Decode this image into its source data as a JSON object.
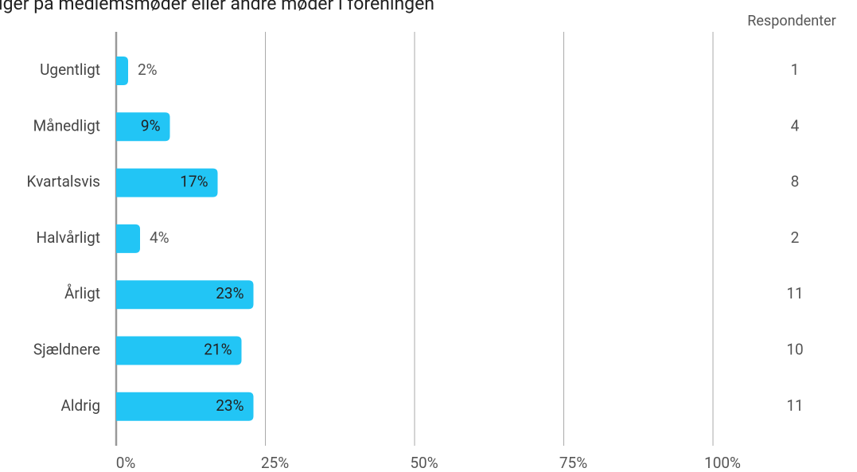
{
  "chart_data": {
    "type": "bar",
    "orientation": "horizontal",
    "title": "lger på medlemsmøder eller andre møder i foreningen",
    "categories": [
      "Ugentligt",
      "Månedligt",
      "Kvartalsvis",
      "Halvårligt",
      "Årligt",
      "Sjældnere",
      "Aldrig"
    ],
    "values": [
      2,
      9,
      17,
      4,
      23,
      21,
      23
    ],
    "value_labels": [
      "2%",
      "9%",
      "17%",
      "4%",
      "23%",
      "21%",
      "23%"
    ],
    "color": "#22c5f5",
    "xlim": [
      0,
      100
    ],
    "xticks": [
      {
        "value": 0,
        "label": "0%"
      },
      {
        "value": 25,
        "label": "25%"
      },
      {
        "value": 50,
        "label": "50%"
      },
      {
        "value": 75,
        "label": "75%"
      },
      {
        "value": 100,
        "label": "100%"
      }
    ],
    "grid": true,
    "respondents_header": "Respondenter",
    "respondents": [
      1,
      4,
      8,
      2,
      11,
      10,
      11
    ]
  }
}
